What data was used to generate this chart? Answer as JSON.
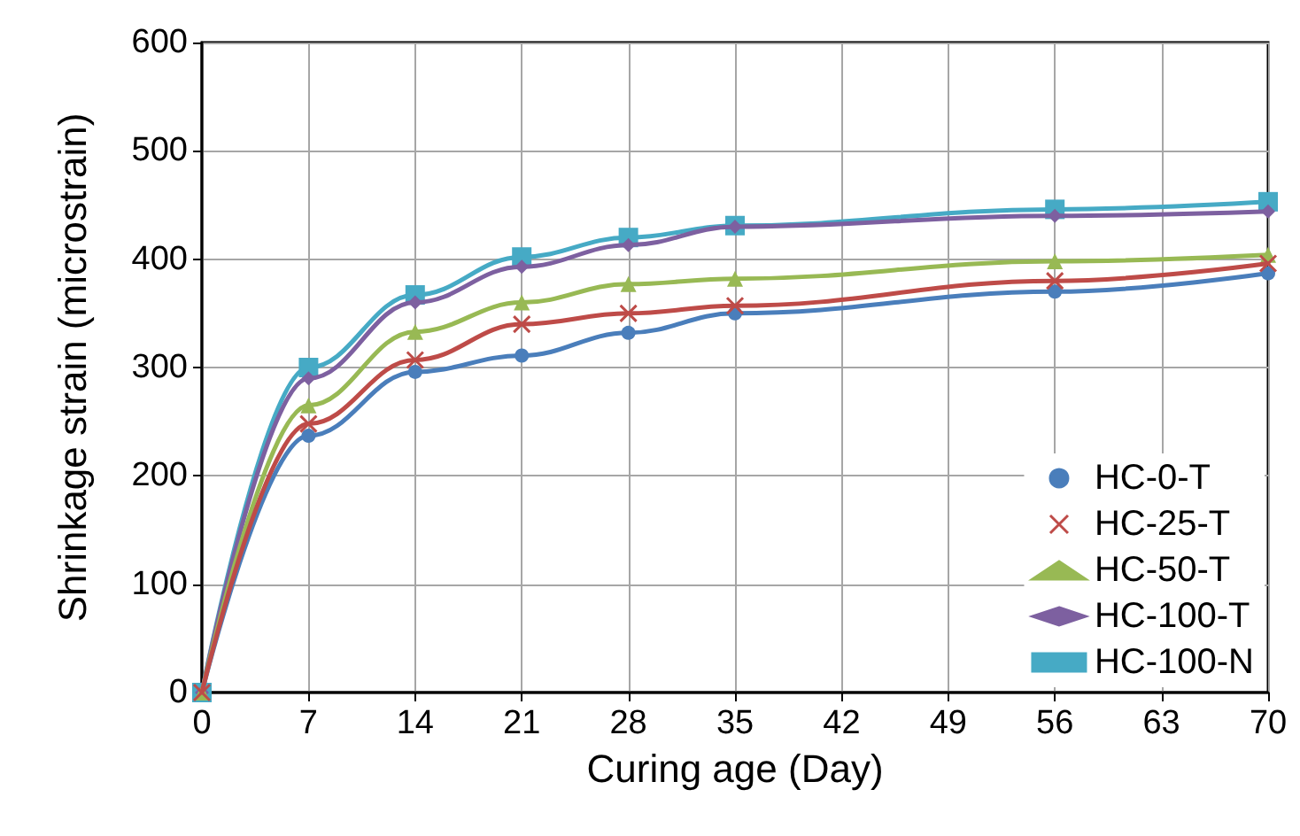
{
  "chart_data": {
    "type": "line",
    "xlabel": "Curing age (Day)",
    "ylabel": "Shrinkage strain (microstrain)",
    "x": [
      0,
      7,
      14,
      21,
      28,
      35,
      56,
      70
    ],
    "series": [
      {
        "name": "HC-0-T",
        "color": "#4a7ebb",
        "marker": "circle",
        "values": [
          0,
          237,
          296,
          311,
          332,
          350,
          370,
          387
        ]
      },
      {
        "name": "HC-25-T",
        "color": "#be4b48",
        "marker": "cross",
        "values": [
          0,
          248,
          307,
          340,
          350,
          357,
          380,
          396
        ]
      },
      {
        "name": "HC-50-T",
        "color": "#98b954",
        "marker": "triangle",
        "values": [
          0,
          265,
          333,
          360,
          377,
          382,
          398,
          404
        ]
      },
      {
        "name": "HC-100-T",
        "color": "#7d60a0",
        "marker": "diamond",
        "values": [
          0,
          290,
          360,
          393,
          413,
          430,
          440,
          444
        ]
      },
      {
        "name": "HC-100-N",
        "color": "#46aac5",
        "marker": "square",
        "values": [
          0,
          300,
          367,
          402,
          420,
          431,
          446,
          453
        ]
      }
    ],
    "xlim": [
      0,
      70
    ],
    "xticks": [
      0,
      7,
      14,
      21,
      28,
      35,
      42,
      49,
      56,
      63,
      70
    ],
    "ylim": [
      0,
      600
    ],
    "yticks": [
      0,
      100,
      200,
      300,
      400,
      500,
      600
    ],
    "grid": true,
    "legend": "bottom right",
    "line_style": "solid"
  }
}
